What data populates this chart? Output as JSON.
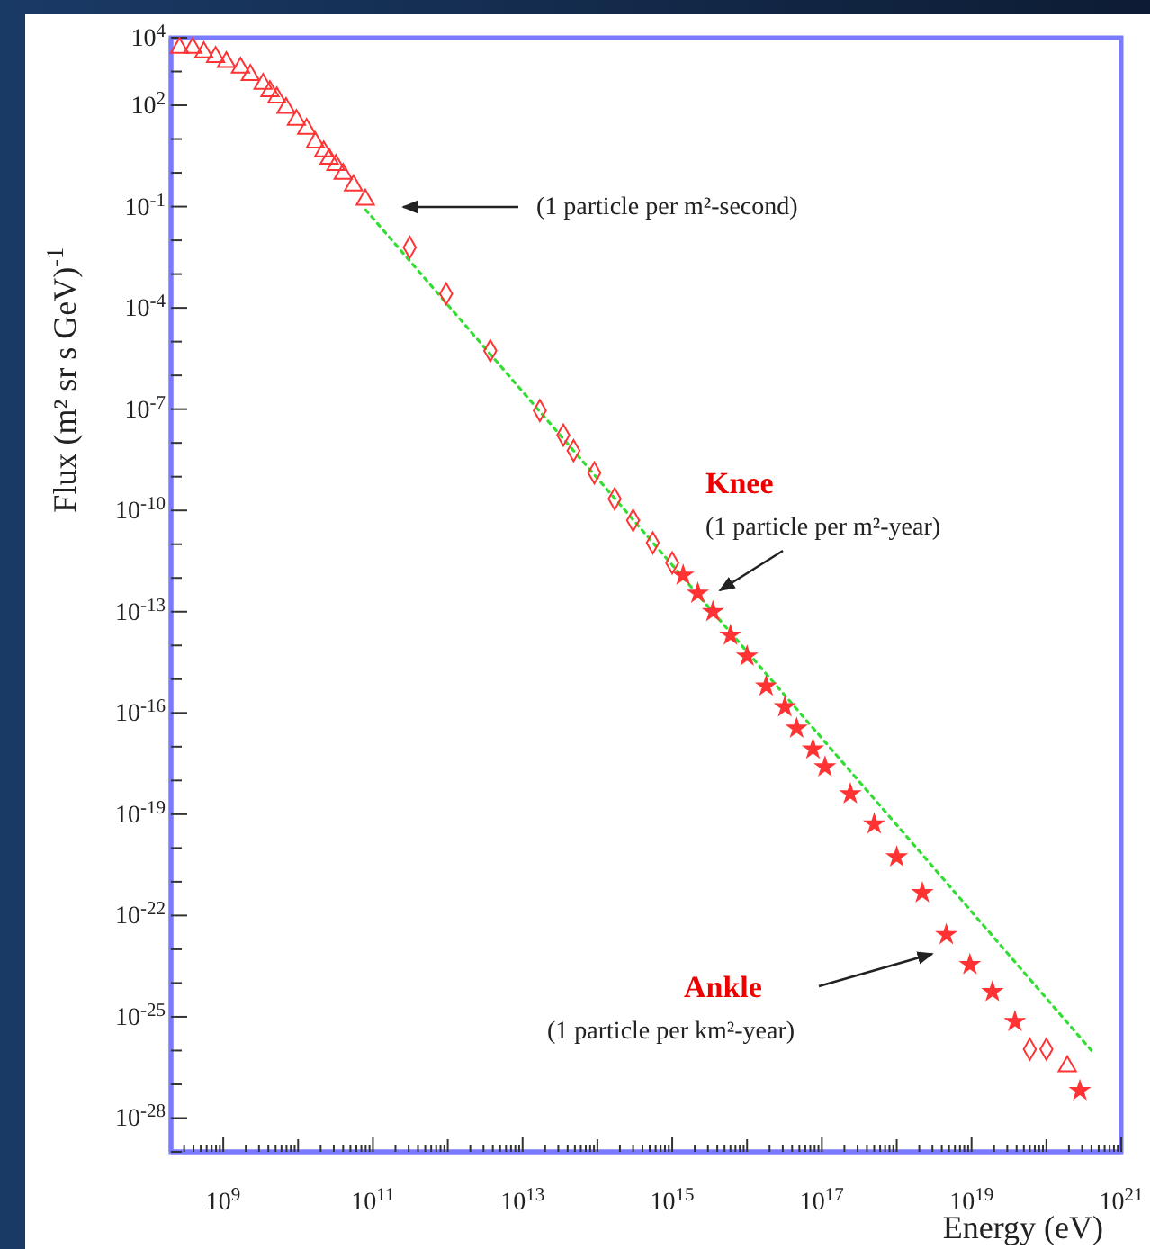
{
  "chart_data": {
    "type": "scatter",
    "xlabel": "Energy (eV)",
    "ylabel": "Flux (m² sr s GeV)$^{-1}$",
    "log": "xy",
    "xlim": [
      200000000.0,
      1e+21
    ],
    "ylim": [
      1e-29,
      10000.0
    ],
    "xticks": [
      {
        "value": 200000000.0,
        "label": null
      },
      {
        "value": 300000000.0,
        "label": null
      },
      {
        "value": 400000000.0,
        "label": null
      },
      {
        "value": 500000000.0,
        "label": null
      },
      {
        "value": 600000000.0,
        "label": null
      },
      {
        "value": 700000000.0,
        "label": null
      },
      {
        "value": 800000000.0,
        "label": null
      },
      {
        "value": 900000000.0,
        "label": null
      },
      {
        "value": 1000000000.0,
        "label": "10$^{9}$"
      },
      {
        "value": 2000000000.0,
        "label": null
      },
      {
        "value": 3000000000.0,
        "label": null
      },
      {
        "value": 4000000000.0,
        "label": null
      },
      {
        "value": 5000000000.0,
        "label": null
      },
      {
        "value": 6000000000.0,
        "label": null
      },
      {
        "value": 7000000000.0,
        "label": null
      },
      {
        "value": 8000000000.0,
        "label": null
      },
      {
        "value": 9000000000.0,
        "label": null
      },
      {
        "value": 10000000000.0,
        "label": null
      },
      {
        "value": 20000000000.0,
        "label": null
      },
      {
        "value": 30000000000.0,
        "label": null
      },
      {
        "value": 40000000000.0,
        "label": null
      },
      {
        "value": 50000000000.0,
        "label": null
      },
      {
        "value": 60000000000.0,
        "label": null
      },
      {
        "value": 70000000000.0,
        "label": null
      },
      {
        "value": 80000000000.0,
        "label": null
      },
      {
        "value": 90000000000.0,
        "label": null
      },
      {
        "value": 100000000000.0,
        "label": "10$^{11}$"
      },
      {
        "value": 200000000000.0,
        "label": null
      },
      {
        "value": 300000000000.0,
        "label": null
      },
      {
        "value": 400000000000.0,
        "label": null
      },
      {
        "value": 500000000000.0,
        "label": null
      },
      {
        "value": 600000000000.0,
        "label": null
      },
      {
        "value": 700000000000.0,
        "label": null
      },
      {
        "value": 800000000000.0,
        "label": null
      },
      {
        "value": 900000000000.0,
        "label": null
      },
      {
        "value": 1000000000000.0,
        "label": null
      },
      {
        "value": 2000000000000.0,
        "label": null
      },
      {
        "value": 3000000000000.0,
        "label": null
      },
      {
        "value": 4000000000000.0,
        "label": null
      },
      {
        "value": 5000000000000.0,
        "label": null
      },
      {
        "value": 6000000000000.0,
        "label": null
      },
      {
        "value": 7000000000000.0,
        "label": null
      },
      {
        "value": 8000000000000.0,
        "label": null
      },
      {
        "value": 9000000000000.0,
        "label": null
      },
      {
        "value": 10000000000000.0,
        "label": "10$^{13}$"
      },
      {
        "value": 20000000000000.0,
        "label": null
      },
      {
        "value": 30000000000000.0,
        "label": null
      },
      {
        "value": 40000000000000.0,
        "label": null
      },
      {
        "value": 50000000000000.0,
        "label": null
      },
      {
        "value": 60000000000000.0,
        "label": null
      },
      {
        "value": 70000000000000.0,
        "label": null
      },
      {
        "value": 80000000000000.0,
        "label": null
      },
      {
        "value": 90000000000000.0,
        "label": null
      },
      {
        "value": 100000000000000.0,
        "label": null
      },
      {
        "value": 200000000000000.0,
        "label": null
      },
      {
        "value": 300000000000000.0,
        "label": null
      },
      {
        "value": 400000000000000.0,
        "label": null
      },
      {
        "value": 500000000000000.0,
        "label": null
      },
      {
        "value": 600000000000000.0,
        "label": null
      },
      {
        "value": 700000000000000.0,
        "label": null
      },
      {
        "value": 800000000000000.0,
        "label": null
      },
      {
        "value": 900000000000000.0,
        "label": null
      },
      {
        "value": 1000000000000000.0,
        "label": "10$^{15}$"
      },
      {
        "value": 2000000000000000.0,
        "label": null
      },
      {
        "value": 3000000000000000.0,
        "label": null
      },
      {
        "value": 4000000000000000.0,
        "label": null
      },
      {
        "value": 5000000000000000.0,
        "label": null
      },
      {
        "value": 6000000000000000.0,
        "label": null
      },
      {
        "value": 7000000000000000.0,
        "label": null
      },
      {
        "value": 8000000000000000.0,
        "label": null
      },
      {
        "value": 9000000000000000.0,
        "label": null
      },
      {
        "value": 1e+16,
        "label": null
      },
      {
        "value": 2e+16,
        "label": null
      },
      {
        "value": 3e+16,
        "label": null
      },
      {
        "value": 4e+16,
        "label": null
      },
      {
        "value": 5e+16,
        "label": null
      },
      {
        "value": 6e+16,
        "label": null
      },
      {
        "value": 7e+16,
        "label": null
      },
      {
        "value": 8e+16,
        "label": null
      },
      {
        "value": 9e+16,
        "label": null
      },
      {
        "value": 1e+17,
        "label": "10$^{17}$"
      },
      {
        "value": 2e+17,
        "label": null
      },
      {
        "value": 3e+17,
        "label": null
      },
      {
        "value": 4e+17,
        "label": null
      },
      {
        "value": 5e+17,
        "label": null
      },
      {
        "value": 6e+17,
        "label": null
      },
      {
        "value": 7e+17,
        "label": null
      },
      {
        "value": 8e+17,
        "label": null
      },
      {
        "value": 9e+17,
        "label": null
      },
      {
        "value": 1e+18,
        "label": null
      },
      {
        "value": 2e+18,
        "label": null
      },
      {
        "value": 3e+18,
        "label": null
      },
      {
        "value": 4e+18,
        "label": null
      },
      {
        "value": 5e+18,
        "label": null
      },
      {
        "value": 6e+18,
        "label": null
      },
      {
        "value": 7e+18,
        "label": null
      },
      {
        "value": 8e+18,
        "label": null
      },
      {
        "value": 9e+18,
        "label": null
      },
      {
        "value": 1e+19,
        "label": "10$^{19}$"
      },
      {
        "value": 2e+19,
        "label": null
      },
      {
        "value": 3e+19,
        "label": null
      },
      {
        "value": 4e+19,
        "label": null
      },
      {
        "value": 5e+19,
        "label": null
      },
      {
        "value": 6e+19,
        "label": null
      },
      {
        "value": 7e+19,
        "label": null
      },
      {
        "value": 8e+19,
        "label": null
      },
      {
        "value": 9e+19,
        "label": null
      },
      {
        "value": 1e+20,
        "label": null
      },
      {
        "value": 2e+20,
        "label": null
      },
      {
        "value": 3e+20,
        "label": null
      },
      {
        "value": 4e+20,
        "label": null
      },
      {
        "value": 5e+20,
        "label": null
      },
      {
        "value": 6e+20,
        "label": null
      },
      {
        "value": 7e+20,
        "label": null
      },
      {
        "value": 8e+20,
        "label": null
      },
      {
        "value": 9e+20,
        "label": null
      },
      {
        "value": 1e+21,
        "label": "10$^{21}$"
      }
    ],
    "yticks": [
      {
        "value": 10000.0,
        "label": "10$^{4}$"
      },
      {
        "value": 1000.0,
        "label": null
      },
      {
        "value": 100.0,
        "label": "10$^{2}$"
      },
      {
        "value": 10.0,
        "label": null
      },
      {
        "value": 1,
        "label": null
      },
      {
        "value": 0.1,
        "label": "10$^{-1}$"
      },
      {
        "value": 0.01,
        "label": null
      },
      {
        "value": 0.001,
        "label": null
      },
      {
        "value": 0.0001,
        "label": "10$^{-4}$"
      },
      {
        "value": 1e-05,
        "label": null
      },
      {
        "value": 1e-06,
        "label": null
      },
      {
        "value": 1e-07,
        "label": "10$^{-7}$"
      },
      {
        "value": 1e-08,
        "label": null
      },
      {
        "value": 1e-09,
        "label": null
      },
      {
        "value": 1e-10,
        "label": "10$^{-10}$"
      },
      {
        "value": 1e-11,
        "label": null
      },
      {
        "value": 1e-12,
        "label": null
      },
      {
        "value": 1e-13,
        "label": "10$^{-13}$"
      },
      {
        "value": 1e-14,
        "label": null
      },
      {
        "value": 1e-15,
        "label": null
      },
      {
        "value": 1e-16,
        "label": "10$^{-16}$"
      },
      {
        "value": 1e-17,
        "label": null
      },
      {
        "value": 1e-18,
        "label": null
      },
      {
        "value": 1e-19,
        "label": "10$^{-19}$"
      },
      {
        "value": 1e-20,
        "label": null
      },
      {
        "value": 1e-21,
        "label": null
      },
      {
        "value": 1e-22,
        "label": "10$^{-22}$"
      },
      {
        "value": 1e-23,
        "label": null
      },
      {
        "value": 1e-24,
        "label": null
      },
      {
        "value": 1e-25,
        "label": "10$^{-25}$"
      },
      {
        "value": 1e-26,
        "label": null
      },
      {
        "value": 1e-27,
        "label": null
      },
      {
        "value": 1e-28,
        "label": "10$^{-28}$"
      },
      {
        "value": 1e-29,
        "label": null
      }
    ],
    "series": [
      {
        "type": "line",
        "color": "#33dd33",
        "line_style": "dotted",
        "marker": "none",
        "x": [
          80000000000.0,
          4e+20
        ],
        "values": [
          0.08,
          1e-26
        ]
      },
      {
        "color": "#ff3333",
        "marker": "triangle",
        "x": [
          260000000.0,
          390000000.0,
          550000000.0,
          790000000.0,
          1100000000.0,
          1700000000.0,
          2300000000.0,
          3400000000.0,
          4200000000.0,
          5200000000.0,
          6900000000.0,
          9500000000.0,
          13000000000.0,
          17000000000.0,
          22000000000.0,
          26000000000.0,
          32000000000.0,
          40000000000.0,
          55000000000.0,
          79000000000.0,
          1.9e+20
        ],
        "values": [
          5000.0,
          5000.0,
          3700.0,
          2700.0,
          1900.0,
          1300.0,
          790.0,
          430.0,
          260.0,
          170.0,
          83,
          37,
          20,
          7.9,
          4.3,
          2.6,
          1.7,
          0.93,
          0.42,
          0.16,
          3.4e-27
        ]
      },
      {
        "color": "#ff3333",
        "marker": "diamond",
        "x": [
          310000000000.0,
          950000000000.0,
          3700000000000.0,
          17000000000000.0,
          35000000000000.0,
          48000000000000.0,
          91000000000000.0,
          170000000000000.0,
          300000000000000.0,
          550000000000000.0,
          1000000000000000.0,
          6e+19,
          1e+20
        ],
        "values": [
          0.0062,
          0.00026,
          5.4e-06,
          9.1e-08,
          1.7e-08,
          5.9e-09,
          1.3e-09,
          2.2e-10,
          5.1e-11,
          1.1e-11,
          2.8e-12,
          1.1e-26,
          1.1e-26
        ]
      },
      {
        "color": "#ff3333",
        "marker": "star",
        "x": [
          1400000000000000.0,
          2200000000000000.0,
          3500000000000000.0,
          6000000000000000.0,
          1e+16,
          1.8e+16,
          3.2e+16,
          4.6e+16,
          7.6e+16,
          1.1e+17,
          2.4e+17,
          5e+17,
          1e+18,
          2.2e+18,
          4.6e+18,
          9.5e+18,
          1.9e+19,
          3.8e+19,
          2.8e+20
        ],
        "values": [
          1.2e-12,
          3.5e-13,
          1e-13,
          2e-14,
          4.8e-15,
          6.2e-16,
          1.5e-16,
          3.5e-17,
          8.5e-18,
          2.5e-18,
          4e-19,
          5.1e-20,
          5.4e-21,
          4.7e-22,
          2.7e-23,
          3.5e-24,
          5.5e-25,
          7.2e-26,
          6.5e-28
        ]
      }
    ],
    "annotations": [
      "(1 particle per m²-second)",
      "Knee",
      "(1 particle per m²-year)",
      "Ankle",
      "(1 particle per km²-year)"
    ]
  }
}
